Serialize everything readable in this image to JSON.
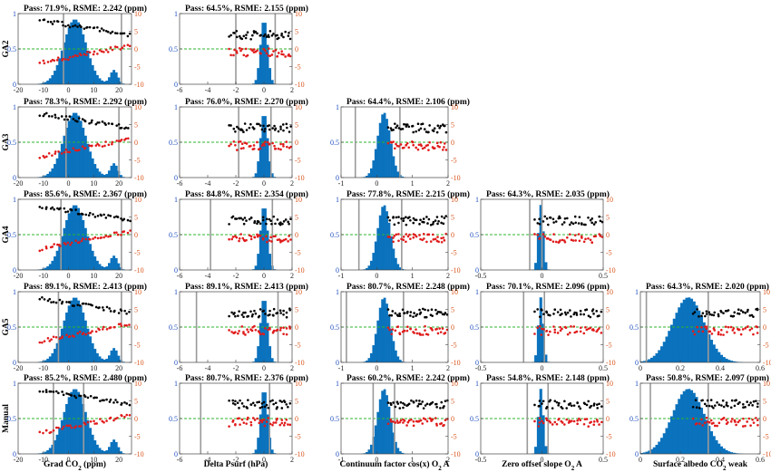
{
  "colors": {
    "hist": "#0b72bd",
    "black_dots": "#000000",
    "red_dots": "#e01b1b",
    "zero_line": "#2cb52c",
    "vlines": "#9a9a9a",
    "left_axis": "#1f4fbf",
    "right_axis": "#d9541a"
  },
  "chart_data": {
    "type": "scatter",
    "rows": [
      "GA2",
      "GA3",
      "GA4",
      "GA5",
      "Manual"
    ],
    "columns": [
      {
        "xlabel": "Grad CO",
        "sub": "2",
        "xlabel_suffix": " (ppm)",
        "xlim": [
          -20,
          25
        ],
        "xticks": [
          -20,
          -10,
          0,
          10,
          20
        ],
        "xticklabels": [
          "-20",
          "-10",
          "0",
          "10",
          "20"
        ],
        "hist_center": 2.5,
        "hist_width": 4.5,
        "hist_secondary": [
          18,
          1.5,
          0.2
        ]
      },
      {
        "xlabel": "Delta Psurf (hPa)",
        "sub": "",
        "xlabel_suffix": "",
        "xlim": [
          -6,
          2
        ],
        "xticks": [
          -6,
          -4,
          -2,
          0,
          2
        ],
        "xticklabels": [
          "-6",
          "-4",
          "-2",
          "0",
          "2"
        ],
        "hist_center": 0,
        "hist_width": 0.25,
        "hist_secondary": null
      },
      {
        "xlabel": "Continuum factor cos(x) O",
        "sub": "2",
        "xlabel_suffix": " A",
        "xlim": [
          -1,
          2
        ],
        "xticks": [
          -1,
          0,
          1,
          2
        ],
        "xticklabels": [
          "-1",
          "0",
          "1",
          "2"
        ],
        "hist_center": 0.2,
        "hist_width": 0.18,
        "hist_secondary": null
      },
      {
        "xlabel": "Zero offset slope O",
        "sub": "2",
        "xlabel_suffix": " A",
        "xlim": [
          -0.5,
          0.5
        ],
        "xticks": [
          -0.5,
          0,
          0.5
        ],
        "xticklabels": [
          "-0.5",
          "0",
          "0.5"
        ],
        "hist_center": -0.01,
        "hist_width": 0.02,
        "hist_secondary": null
      },
      {
        "xlabel": "Surface albedo CO",
        "sub": "2",
        "xlabel_suffix": " weak",
        "xlim": [
          0,
          0.6
        ],
        "xticks": [
          0,
          0.2,
          0.4,
          0.6
        ],
        "xticklabels": [
          "0",
          "0.2",
          "0.4",
          "0.6"
        ],
        "hist_center": 0.24,
        "hist_width": 0.08,
        "hist_secondary": null
      }
    ],
    "left_ylim": [
      0,
      1
    ],
    "left_yticks": [
      "0",
      "0.5",
      "1"
    ],
    "right_ylim": [
      -10,
      10
    ],
    "right_yticks": [
      "-10",
      "-5",
      "0",
      "5",
      "10"
    ],
    "panels": [
      {
        "row": 0,
        "col": 0,
        "title": "Pass: 71.9%, RSME: 2.242 (ppm)",
        "vlines": [
          -2,
          21
        ]
      },
      {
        "row": 0,
        "col": 1,
        "title": "Pass: 64.5%, RSME: 2.155 (ppm)",
        "vlines": [
          -2,
          0.8
        ]
      },
      {
        "row": 1,
        "col": 0,
        "title": "Pass: 78.3%, RSME: 2.292 (ppm)",
        "vlines": [
          -1,
          20
        ]
      },
      {
        "row": 1,
        "col": 1,
        "title": "Pass: 76.0%, RSME: 2.270 (ppm)",
        "vlines": [
          -1.8,
          0.5
        ]
      },
      {
        "row": 1,
        "col": 2,
        "title": "Pass: 64.4%, RSME: 2.106 (ppm)",
        "vlines": [
          -0.6,
          0.65
        ]
      },
      {
        "row": 2,
        "col": 0,
        "title": "Pass: 85.6%, RSME: 2.367 (ppm)",
        "vlines": [
          -3,
          21
        ]
      },
      {
        "row": 2,
        "col": 1,
        "title": "Pass: 84.8%, RSME: 2.354 (ppm)",
        "vlines": [
          -3.8,
          0.6
        ]
      },
      {
        "row": 2,
        "col": 2,
        "title": "Pass: 77.8%, RSME: 2.215 (ppm)",
        "vlines": [
          -0.5,
          0.7
        ]
      },
      {
        "row": 2,
        "col": 3,
        "title": "Pass: 64.3%, RSME: 2.035 (ppm)",
        "vlines": [
          -0.1,
          0.0
        ]
      },
      {
        "row": 3,
        "col": 0,
        "title": "Pass: 89.1%, RSME: 2.413 (ppm)",
        "vlines": [
          -4,
          21
        ]
      },
      {
        "row": 3,
        "col": 1,
        "title": "Pass: 89.1%, RSME: 2.413 (ppm)",
        "vlines": [
          -4.8,
          1.0
        ]
      },
      {
        "row": 3,
        "col": 2,
        "title": "Pass: 80.7%, RSME: 2.248 (ppm)",
        "vlines": [
          -0.85,
          0.75
        ]
      },
      {
        "row": 3,
        "col": 3,
        "title": "Pass: 70.1%, RSME: 2.096 (ppm)",
        "vlines": [
          -0.15,
          0.02
        ]
      },
      {
        "row": 3,
        "col": 4,
        "title": "Pass: 64.3%, RSME: 2.020 (ppm)",
        "vlines": [
          0.03,
          0.34
        ]
      },
      {
        "row": 4,
        "col": 0,
        "title": "Pass: 85.2%, RSME: 2.480 (ppm)",
        "vlines": [
          -6,
          6
        ]
      },
      {
        "row": 4,
        "col": 1,
        "title": "Pass: 80.7%, RSME: 2.376 (ppm)",
        "vlines": [
          -4.5,
          0.4
        ]
      },
      {
        "row": 4,
        "col": 2,
        "title": "Pass: 60.2%, RSME: 2.242 (ppm)",
        "vlines": [
          -0.1,
          0.5
        ]
      },
      {
        "row": 4,
        "col": 3,
        "title": "Pass: 54.8%, RSME: 2.148 (ppm)",
        "vlines": [
          -0.12,
          0.05
        ]
      },
      {
        "row": 4,
        "col": 4,
        "title": "Pass: 50.8%, RSME: 2.097 (ppm)",
        "vlines": [
          0.05,
          0.34
        ]
      }
    ]
  }
}
